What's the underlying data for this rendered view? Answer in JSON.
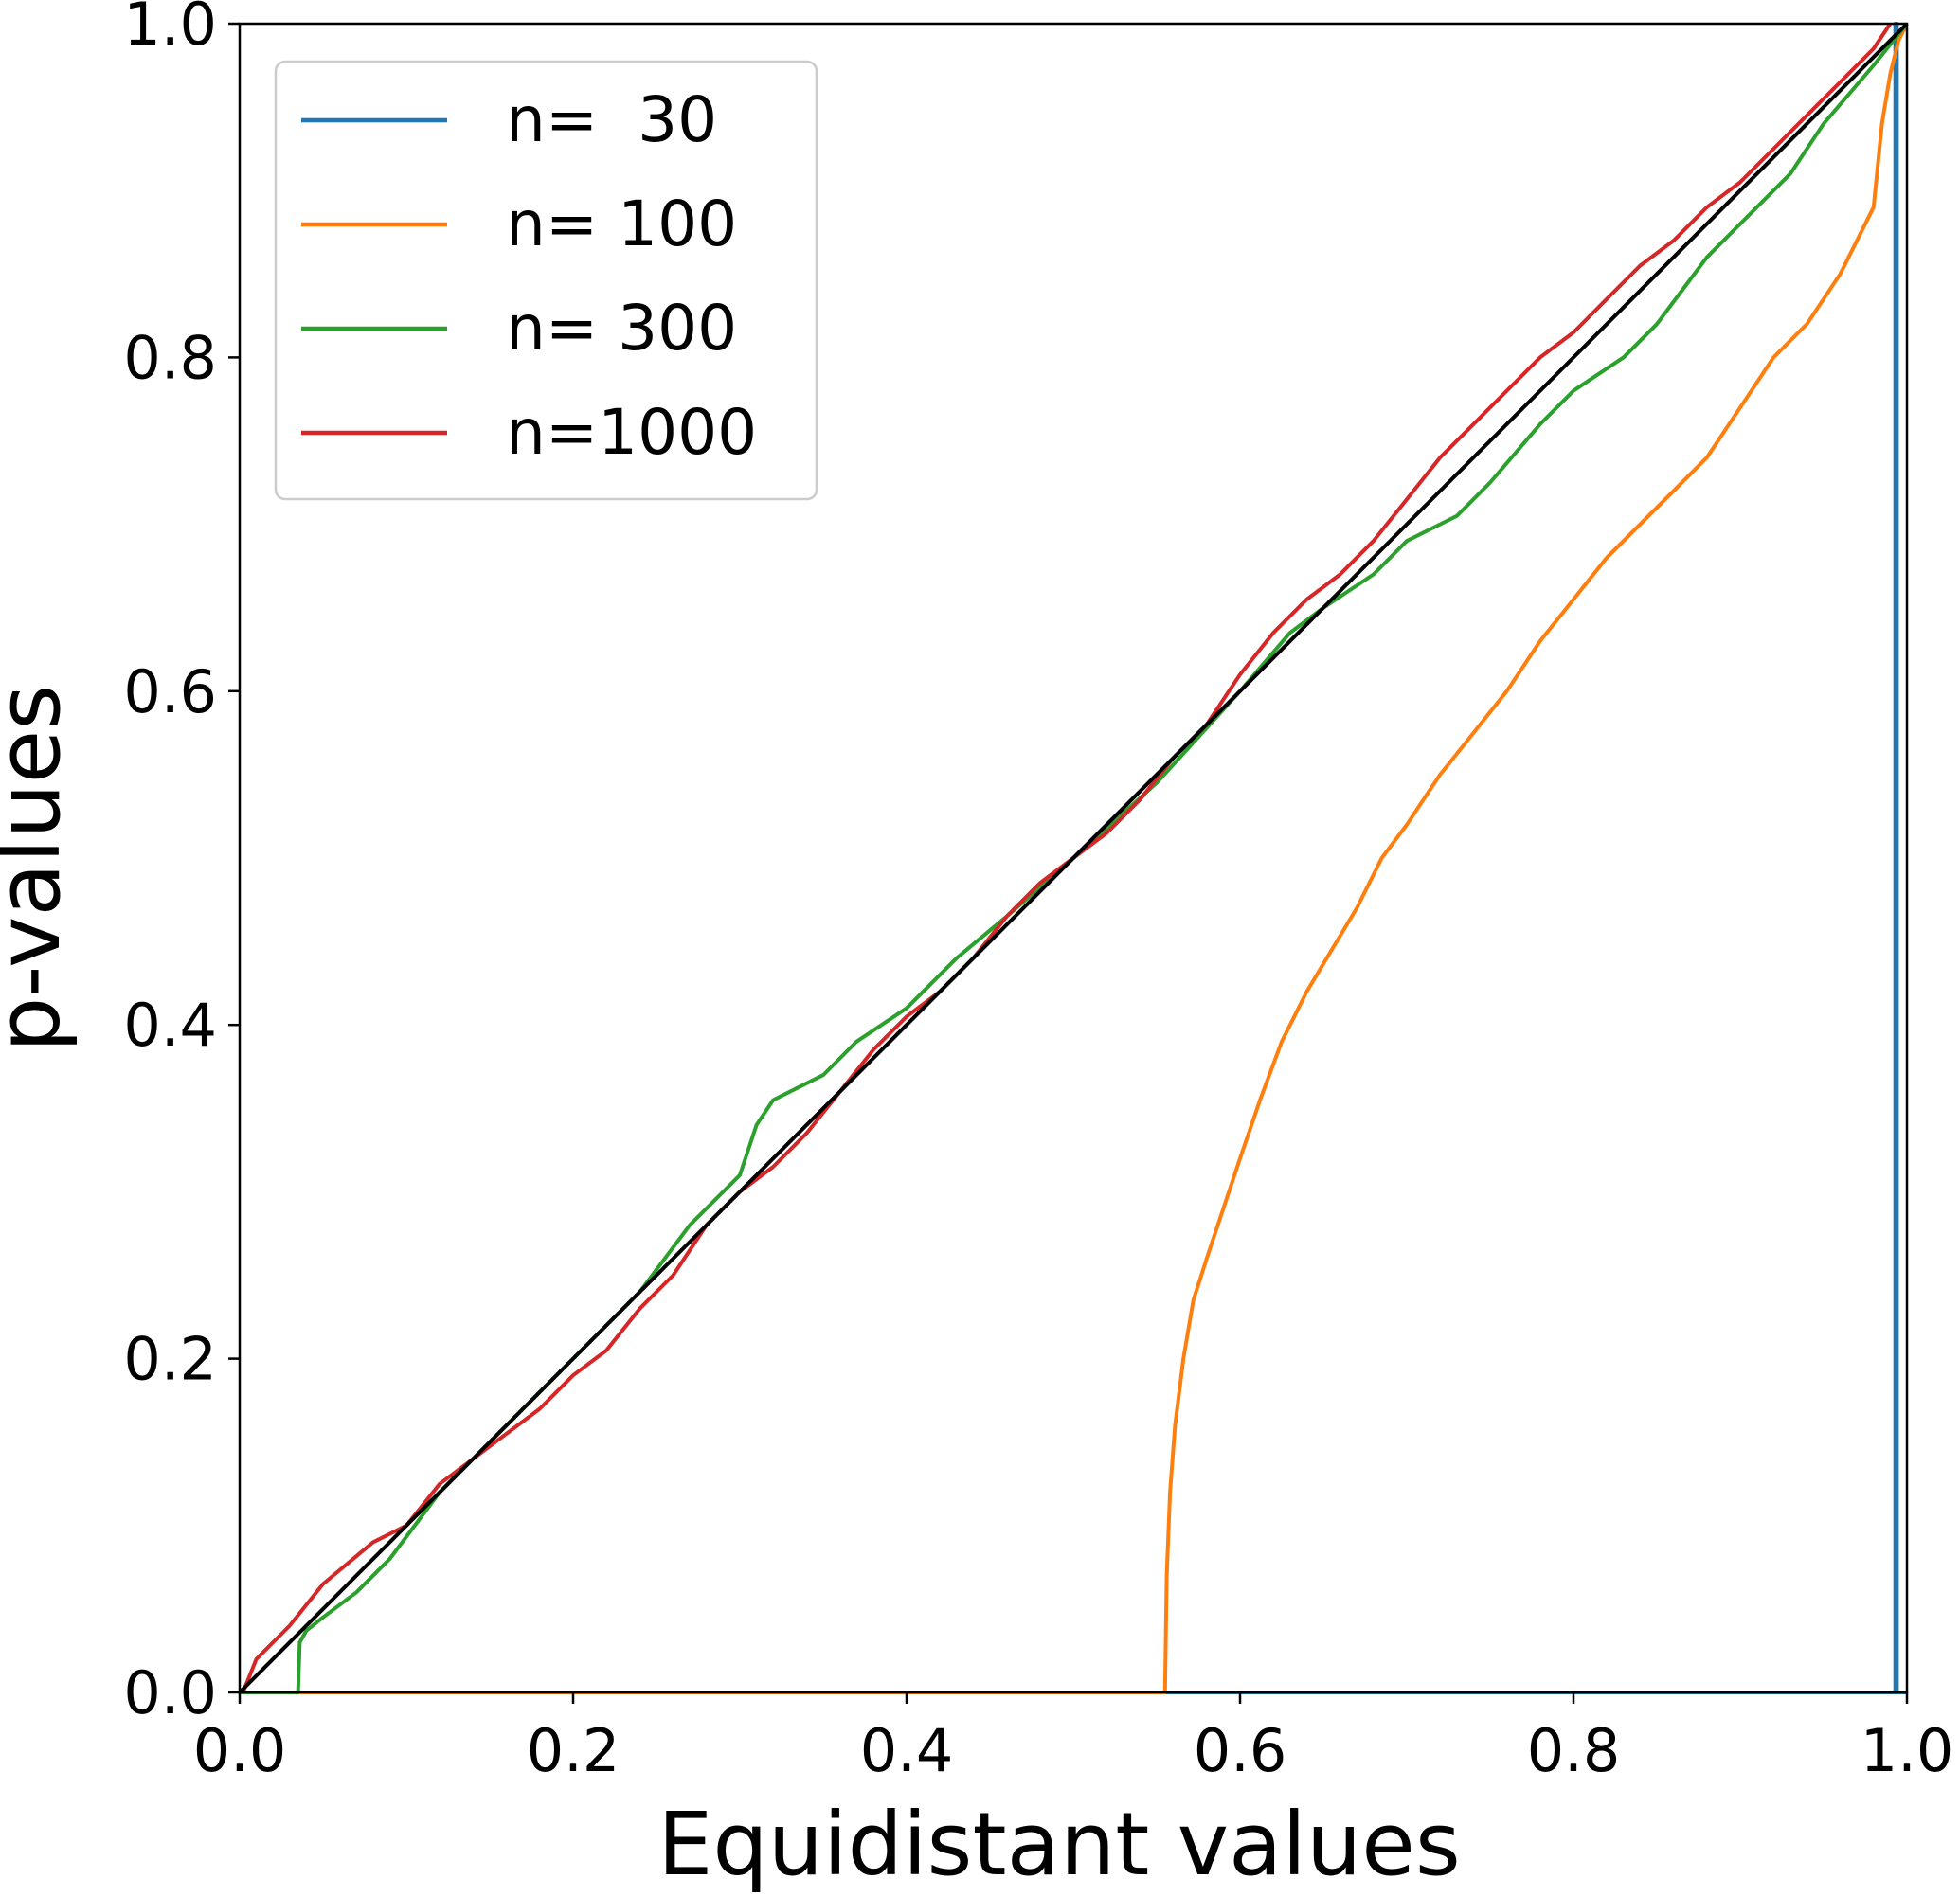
{
  "chart_data": {
    "type": "line",
    "title": "",
    "xlabel": "Equidistant values",
    "ylabel": "p-values",
    "xlim": [
      0.0,
      1.0
    ],
    "ylim": [
      0.0,
      1.0
    ],
    "xticks": [
      "0.0",
      "0.2",
      "0.4",
      "0.6",
      "0.8",
      "1.0"
    ],
    "yticks": [
      "0.0",
      "0.2",
      "0.4",
      "0.6",
      "0.8",
      "1.0"
    ],
    "grid": false,
    "legend_position": "top-left",
    "reference_line": {
      "x": [
        0.0,
        1.0
      ],
      "y": [
        0.0,
        1.0
      ],
      "color": "#000000"
    },
    "series": [
      {
        "name": "n=  30",
        "color": "#1f77b4",
        "x": [
          0.0,
          0.993,
          0.993,
          0.994,
          0.994,
          1.0
        ],
        "y": [
          0.0,
          0.0,
          1.0,
          1.0,
          0.0,
          0.0
        ]
      },
      {
        "name": "n= 100",
        "color": "#ff7f0e",
        "x": [
          0.0,
          0.555,
          0.556,
          0.558,
          0.561,
          0.566,
          0.572,
          0.58,
          0.59,
          0.6,
          0.612,
          0.625,
          0.64,
          0.655,
          0.67,
          0.685,
          0.7,
          0.72,
          0.74,
          0.76,
          0.78,
          0.8,
          0.82,
          0.84,
          0.86,
          0.88,
          0.9,
          0.92,
          0.94,
          0.96,
          0.98,
          0.985,
          0.99,
          0.995,
          1.0
        ],
        "y": [
          0.0,
          0.0,
          0.07,
          0.12,
          0.16,
          0.2,
          0.235,
          0.26,
          0.29,
          0.32,
          0.355,
          0.39,
          0.42,
          0.445,
          0.47,
          0.5,
          0.52,
          0.55,
          0.575,
          0.6,
          0.63,
          0.655,
          0.68,
          0.7,
          0.72,
          0.74,
          0.77,
          0.8,
          0.82,
          0.85,
          0.89,
          0.94,
          0.97,
          0.99,
          1.0
        ]
      },
      {
        "name": "n= 300",
        "color": "#2ca02c",
        "x": [
          0.0,
          0.035,
          0.036,
          0.04,
          0.05,
          0.07,
          0.09,
          0.12,
          0.15,
          0.18,
          0.21,
          0.24,
          0.27,
          0.3,
          0.31,
          0.32,
          0.33,
          0.35,
          0.37,
          0.4,
          0.43,
          0.46,
          0.5,
          0.55,
          0.6,
          0.63,
          0.65,
          0.68,
          0.7,
          0.73,
          0.75,
          0.78,
          0.8,
          0.83,
          0.85,
          0.88,
          0.9,
          0.93,
          0.95,
          0.98,
          1.0
        ],
        "y": [
          0.0,
          0.0,
          0.03,
          0.037,
          0.045,
          0.06,
          0.08,
          0.12,
          0.15,
          0.18,
          0.21,
          0.24,
          0.28,
          0.31,
          0.34,
          0.355,
          0.36,
          0.37,
          0.39,
          0.41,
          0.44,
          0.465,
          0.5,
          0.545,
          0.6,
          0.635,
          0.65,
          0.67,
          0.69,
          0.705,
          0.725,
          0.76,
          0.78,
          0.8,
          0.82,
          0.86,
          0.88,
          0.91,
          0.94,
          0.975,
          1.0
        ]
      },
      {
        "name": "n=1000",
        "color": "#d62728",
        "x": [
          0.002,
          0.01,
          0.03,
          0.05,
          0.08,
          0.1,
          0.12,
          0.14,
          0.16,
          0.18,
          0.2,
          0.22,
          0.24,
          0.26,
          0.28,
          0.3,
          0.32,
          0.34,
          0.36,
          0.38,
          0.4,
          0.42,
          0.44,
          0.46,
          0.48,
          0.5,
          0.52,
          0.54,
          0.56,
          0.58,
          0.6,
          0.62,
          0.64,
          0.66,
          0.68,
          0.7,
          0.72,
          0.74,
          0.76,
          0.78,
          0.8,
          0.82,
          0.84,
          0.86,
          0.88,
          0.9,
          0.92,
          0.94,
          0.96,
          0.98,
          0.99
        ],
        "y": [
          0.0,
          0.02,
          0.04,
          0.065,
          0.09,
          0.1,
          0.125,
          0.14,
          0.155,
          0.17,
          0.19,
          0.205,
          0.23,
          0.25,
          0.28,
          0.3,
          0.315,
          0.335,
          0.36,
          0.385,
          0.405,
          0.42,
          0.44,
          0.465,
          0.485,
          0.5,
          0.515,
          0.535,
          0.56,
          0.58,
          0.61,
          0.635,
          0.655,
          0.67,
          0.69,
          0.715,
          0.74,
          0.76,
          0.78,
          0.8,
          0.815,
          0.835,
          0.855,
          0.87,
          0.89,
          0.905,
          0.925,
          0.945,
          0.965,
          0.985,
          1.0
        ]
      }
    ]
  }
}
